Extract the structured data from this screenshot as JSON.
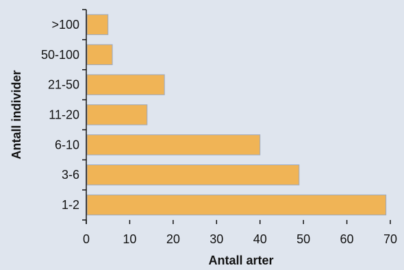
{
  "colors": {
    "background": "#dfe5ee",
    "bar_fill": "#f0b456",
    "bar_stroke": "#9aa9c4",
    "axis": "#111111"
  },
  "chart_data": {
    "type": "bar",
    "orientation": "horizontal",
    "categories": [
      ">100",
      "50-100",
      "21-50",
      "11-20",
      "6-10",
      "3-6",
      "1-2"
    ],
    "values": [
      5,
      6,
      18,
      14,
      40,
      49,
      69
    ],
    "title": "",
    "xlabel": "Antall arter",
    "ylabel": "Antall individer",
    "xlim": [
      0,
      70
    ],
    "xticks": [
      0,
      10,
      20,
      30,
      40,
      50,
      60,
      70
    ],
    "grid": false,
    "legend": "none"
  }
}
